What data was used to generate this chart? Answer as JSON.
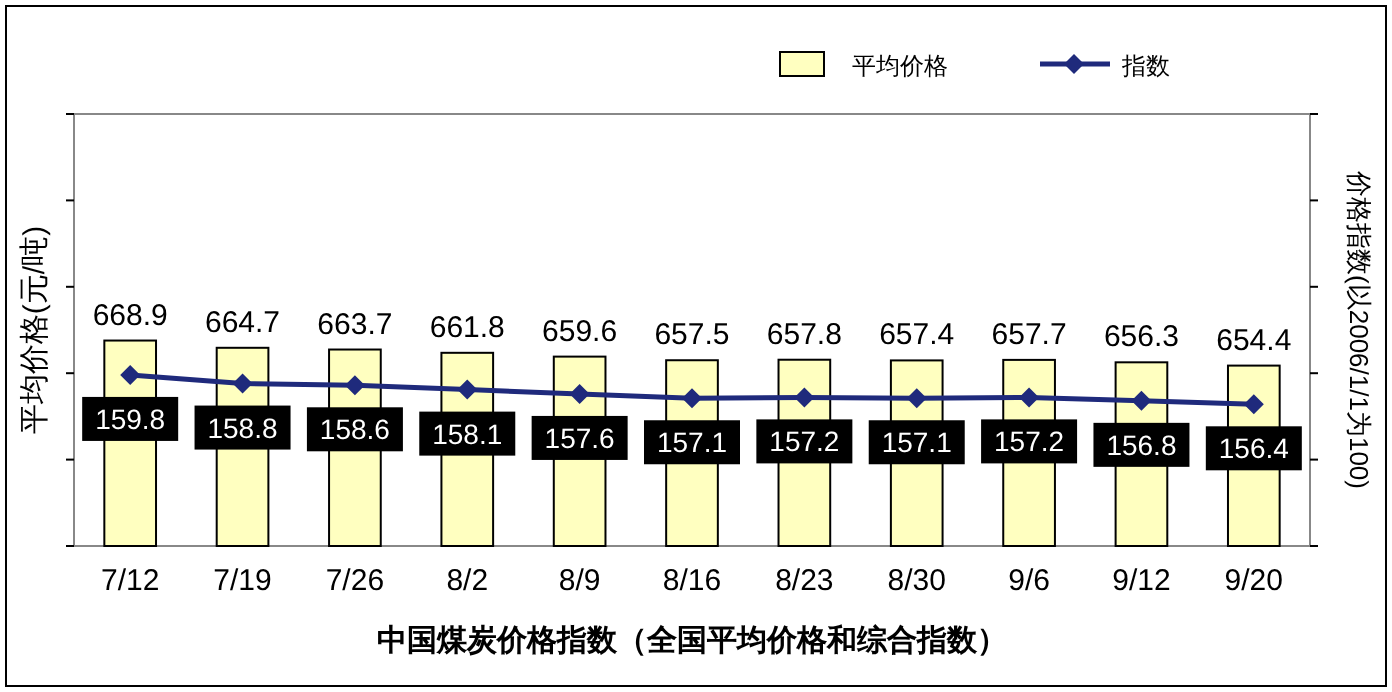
{
  "chart_data": {
    "type": "bar",
    "xlabel": "中国煤炭价格指数（全国平均价格和综合指数）",
    "ylabel": "平均价格(元/吨)",
    "y2label": "价格指数(以2006/1/1为100)",
    "categories": [
      "7/12",
      "7/19",
      "7/26",
      "8/2",
      "8/9",
      "8/16",
      "8/23",
      "8/30",
      "9/6",
      "9/12",
      "9/20"
    ],
    "series": [
      {
        "name": "平均价格",
        "color": "#ffffc0",
        "values": [
          668.9,
          664.7,
          663.7,
          661.8,
          659.6,
          657.5,
          657.8,
          657.4,
          657.7,
          656.3,
          654.4
        ]
      },
      {
        "name": "指数",
        "type": "line",
        "axis": "y2",
        "color": "#1f2a7c",
        "marker": "diamond",
        "values": [
          159.8,
          158.8,
          158.6,
          158.1,
          157.6,
          157.1,
          157.2,
          157.1,
          157.2,
          156.8,
          156.4
        ]
      }
    ],
    "ylim": [
      550,
      800
    ],
    "yticks": [
      {
        "value": 550,
        "label": null
      },
      {
        "value": 600,
        "label": null
      },
      {
        "value": 650,
        "label": null
      },
      {
        "value": 700,
        "label": null
      },
      {
        "value": 750,
        "label": null
      },
      {
        "value": 800,
        "label": null
      }
    ],
    "y2lim": [
      140,
      190
    ],
    "y2ticks": [
      {
        "value": 140,
        "label": null
      },
      {
        "value": 150,
        "label": null
      },
      {
        "value": 160,
        "label": null
      },
      {
        "value": 170,
        "label": null
      },
      {
        "value": 180,
        "label": null
      },
      {
        "value": 190,
        "label": null
      }
    ],
    "data_labels": true,
    "legend": "top right",
    "grid": false
  }
}
